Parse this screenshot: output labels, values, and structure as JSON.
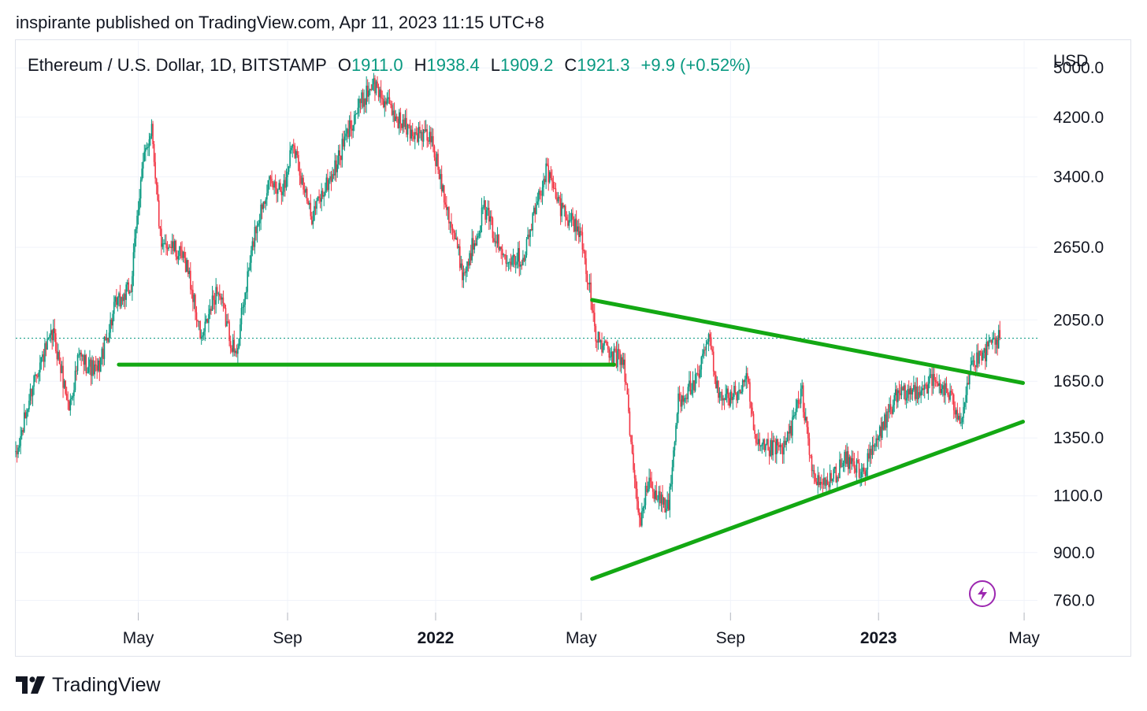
{
  "header": {
    "published": "inspirante published on TradingView.com, Apr 11, 2023 11:15 UTC+8"
  },
  "legend": {
    "symbol": "Ethereum / U.S. Dollar, 1D, BITSTAMP",
    "open_key": "O",
    "open": "1911.0",
    "high_key": "H",
    "high": "1938.4",
    "low_key": "L",
    "low": "1909.2",
    "close_key": "C",
    "close": "1921.3",
    "change": "+9.9 (+0.52%)"
  },
  "brand": {
    "name": "TradingView",
    "logo_icon": "tradingview-logo-icon"
  },
  "widget": {
    "icon": "lightning-bolt-icon"
  },
  "colors": {
    "up": "#089981",
    "down": "#f23645",
    "trendline": "#13a813",
    "grid": "#f0f3fa",
    "current_price_line": "#089981",
    "accent": "#9c27b0"
  },
  "chart_data": {
    "type": "candlestick",
    "title": "Ethereum / U.S. Dollar, 1D, BITSTAMP",
    "currency": "USD",
    "y_scale": "log",
    "ylim": [
      700,
      5500
    ],
    "xlim": [
      "2021-01-20",
      "2023-05-12"
    ],
    "y_ticks": [
      "5000.0",
      "4200.0",
      "3400.0",
      "2650.0",
      "2050.0",
      "1650.0",
      "1350.0",
      "1100.0",
      "900.0",
      "760.0"
    ],
    "y_tick_values": [
      5000,
      4200,
      3400,
      2650,
      2050,
      1650,
      1350,
      1100,
      900,
      760
    ],
    "x_ticks": [
      {
        "label": "May",
        "date": "2021-05-01",
        "bold": false
      },
      {
        "label": "Sep",
        "date": "2021-09-01",
        "bold": false
      },
      {
        "label": "2022",
        "date": "2022-01-01",
        "bold": true
      },
      {
        "label": "May",
        "date": "2022-05-01",
        "bold": false
      },
      {
        "label": "Sep",
        "date": "2022-09-01",
        "bold": false
      },
      {
        "label": "2023",
        "date": "2023-01-01",
        "bold": true
      },
      {
        "label": "May",
        "date": "2023-05-01",
        "bold": false
      }
    ],
    "last_price": 1921.3,
    "price_path": [
      [
        "2021-01-20",
        1250
      ],
      [
        "2021-02-05",
        1700
      ],
      [
        "2021-02-20",
        1950
      ],
      [
        "2021-03-05",
        1500
      ],
      [
        "2021-03-13",
        1800
      ],
      [
        "2021-03-28",
        1700
      ],
      [
        "2021-04-12",
        2150
      ],
      [
        "2021-04-25",
        2300
      ],
      [
        "2021-05-03",
        3400
      ],
      [
        "2021-05-12",
        4100
      ],
      [
        "2021-05-20",
        2600
      ],
      [
        "2021-05-25",
        2700
      ],
      [
        "2021-06-10",
        2500
      ],
      [
        "2021-06-22",
        1900
      ],
      [
        "2021-07-05",
        2300
      ],
      [
        "2021-07-20",
        1800
      ],
      [
        "2021-08-05",
        2800
      ],
      [
        "2021-08-15",
        3300
      ],
      [
        "2021-08-30",
        3300
      ],
      [
        "2021-09-05",
        3900
      ],
      [
        "2021-09-20",
        2950
      ],
      [
        "2021-10-10",
        3500
      ],
      [
        "2021-10-25",
        4200
      ],
      [
        "2021-11-10",
        4750
      ],
      [
        "2021-11-25",
        4300
      ],
      [
        "2021-12-10",
        4000
      ],
      [
        "2021-12-28",
        3900
      ],
      [
        "2022-01-10",
        3100
      ],
      [
        "2022-01-24",
        2400
      ],
      [
        "2022-02-10",
        3050
      ],
      [
        "2022-02-24",
        2600
      ],
      [
        "2022-03-14",
        2550
      ],
      [
        "2022-04-02",
        3500
      ],
      [
        "2022-04-12",
        3100
      ],
      [
        "2022-04-30",
        2800
      ],
      [
        "2022-05-08",
        2300
      ],
      [
        "2022-05-12",
        1950
      ],
      [
        "2022-05-25",
        1800
      ],
      [
        "2022-06-05",
        1780
      ],
      [
        "2022-06-13",
        1200
      ],
      [
        "2022-06-18",
        1000
      ],
      [
        "2022-06-25",
        1150
      ],
      [
        "2022-07-12",
        1050
      ],
      [
        "2022-07-20",
        1550
      ],
      [
        "2022-08-05",
        1650
      ],
      [
        "2022-08-14",
        1950
      ],
      [
        "2022-08-20",
        1620
      ],
      [
        "2022-09-01",
        1550
      ],
      [
        "2022-09-15",
        1650
      ],
      [
        "2022-09-22",
        1300
      ],
      [
        "2022-10-15",
        1300
      ],
      [
        "2022-10-30",
        1580
      ],
      [
        "2022-11-09",
        1150
      ],
      [
        "2022-11-20",
        1150
      ],
      [
        "2022-12-05",
        1250
      ],
      [
        "2022-12-20",
        1200
      ],
      [
        "2023-01-14",
        1550
      ],
      [
        "2023-02-01",
        1600
      ],
      [
        "2023-02-15",
        1650
      ],
      [
        "2023-02-25",
        1600
      ],
      [
        "2023-03-10",
        1450
      ],
      [
        "2023-03-18",
        1750
      ],
      [
        "2023-03-25",
        1780
      ],
      [
        "2023-04-05",
        1880
      ],
      [
        "2023-04-11",
        1921.3
      ]
    ],
    "annotations": [
      {
        "type": "trendline",
        "name": "horizontal-support",
        "from": [
          "2021-04-15",
          1750
        ],
        "to": [
          "2022-05-28",
          1750
        ]
      },
      {
        "type": "trendline",
        "name": "descending-resistance",
        "from": [
          "2022-05-10",
          2200
        ],
        "to": [
          "2023-04-30",
          1640
        ]
      },
      {
        "type": "trendline",
        "name": "ascending-support",
        "from": [
          "2022-05-10",
          820
        ],
        "to": [
          "2023-04-30",
          1430
        ]
      }
    ]
  }
}
